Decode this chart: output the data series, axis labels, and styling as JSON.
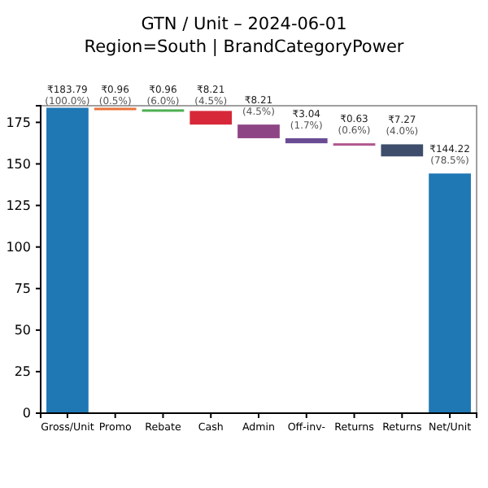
{
  "chart_data": {
    "type": "bar",
    "title": "GTN / Unit – 2024-06-01",
    "subtitle": "Region=South | BrandCategoryPower",
    "categories": [
      "Gross/Unit",
      "Promo",
      "Rebate",
      "Cash",
      "Admin",
      "Off-inv-",
      "Returns",
      "Returns",
      "Net/Unit"
    ],
    "values": [
      183.79,
      0.96,
      0.96,
      8.21,
      8.21,
      3.04,
      0.63,
      7.27,
      144.22
    ],
    "base": [
      0,
      182.83,
      181.87,
      173.66,
      165.45,
      162.41,
      161.78,
      154.51,
      0
    ],
    "colors": [
      "#1f77b4",
      "#e8733a",
      "#4caf50",
      "#d62839",
      "#8e4585",
      "#6a4c93",
      "#b0578d",
      "#3d4d6b",
      "#1f77b4"
    ],
    "value_labels": [
      "₹183.79\n(100.0%)",
      "₹0.96\n(0.5%)",
      "₹0.96\n(6.0%)",
      "₹8.21\n(4.5%)",
      "₹8.21\n(4.5%)",
      "₹3.04\n(1.7%)",
      "₹0.63\n(0.6%)",
      "₹7.27\n(4.0%)",
      "₹144.22\n(78.5%)"
    ],
    "ylim": [
      0,
      185
    ],
    "yticks": [
      0,
      25,
      50,
      75,
      100,
      125,
      150,
      175
    ],
    "grid": false
  }
}
